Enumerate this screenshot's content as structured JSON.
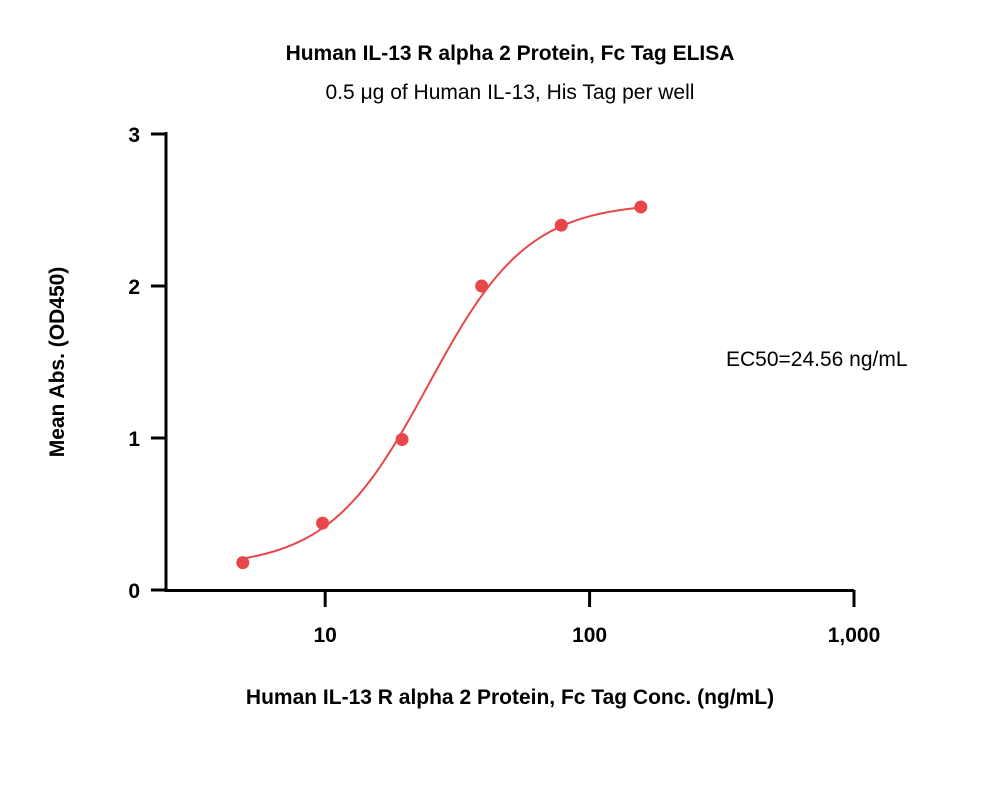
{
  "chart_data": {
    "type": "scatter",
    "title": "Human IL-13 R alpha 2 Protein, Fc Tag ELISA",
    "subtitle": "0.5 μg of Human IL-13, His Tag per well",
    "xlabel": "Human IL-13 R alpha 2 Protein, Fc Tag Conc. (ng/mL)",
    "ylabel": "Mean Abs. (OD450)",
    "x_scale": "log",
    "xlim": [
      2.5,
      1000
    ],
    "ylim": [
      0,
      3
    ],
    "x_ticks": [
      10,
      100,
      1000
    ],
    "x_tick_labels": [
      "10",
      "100",
      "1,000"
    ],
    "y_ticks": [
      0,
      1,
      2,
      3
    ],
    "y_tick_labels": [
      "0",
      "1",
      "2",
      "3"
    ],
    "grid": false,
    "series": [
      {
        "color": "#e8474a",
        "x": [
          4.88,
          9.77,
          19.53,
          39.06,
          78.13,
          156.25
        ],
        "y": [
          0.18,
          0.44,
          0.99,
          2.0,
          2.4,
          2.52
        ]
      }
    ],
    "fit_curve": {
      "model": "4PL",
      "bottom": 0.15,
      "top": 2.55,
      "ec50": 24.56,
      "hill": 2.3,
      "color": "#e8474a"
    },
    "annotation": "EC50=24.56 ng/mL"
  }
}
